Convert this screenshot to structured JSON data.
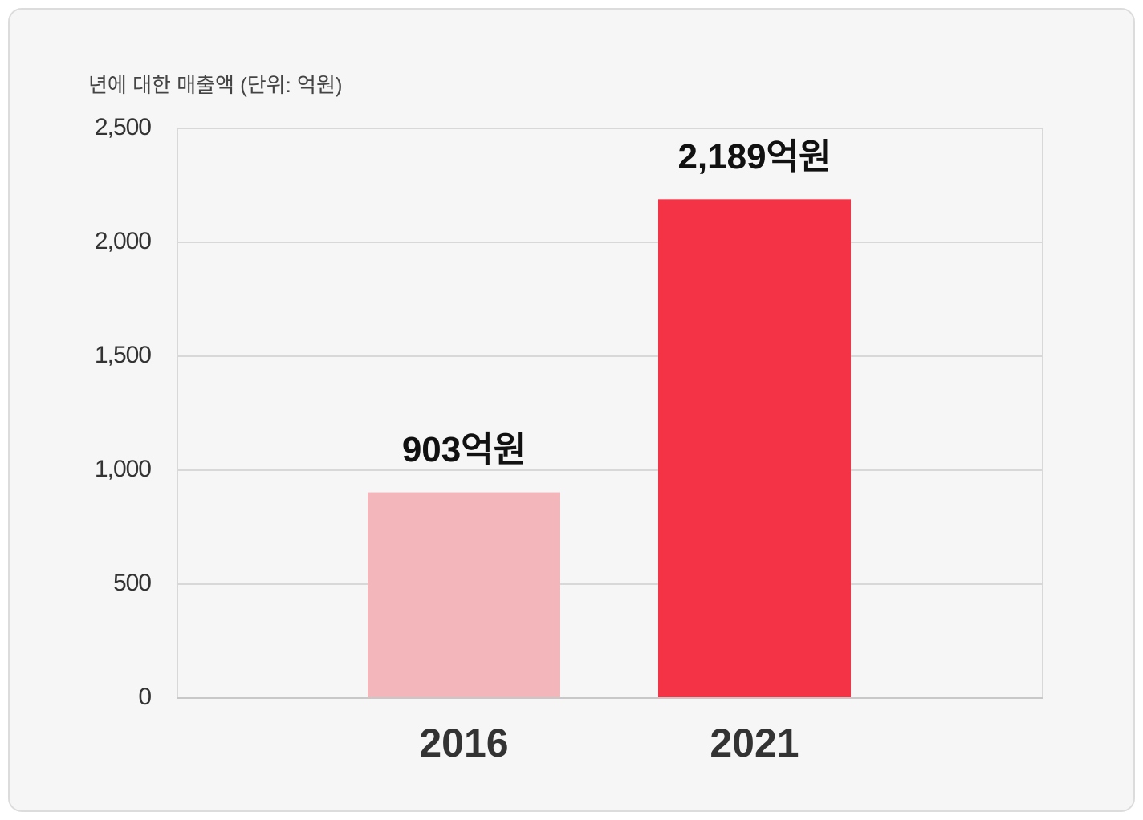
{
  "chart_data": {
    "type": "bar",
    "title": "년에 대한 매출액 (단위: 억원)",
    "categories": [
      "2016",
      "2021"
    ],
    "values": [
      903,
      2189
    ],
    "value_labels": [
      "903억원",
      "2,189억원"
    ],
    "colors": [
      "#f3b6bb",
      "#f53346"
    ],
    "ylim": [
      0,
      2500
    ],
    "yticks": [
      0,
      500,
      {
        "value": 1000,
        "label": "1,000"
      },
      {
        "value": 1500,
        "label": "1,500"
      },
      {
        "value": 2000,
        "label": "2,000"
      },
      {
        "value": 2500,
        "label": "2,500"
      }
    ],
    "grid": true
  }
}
